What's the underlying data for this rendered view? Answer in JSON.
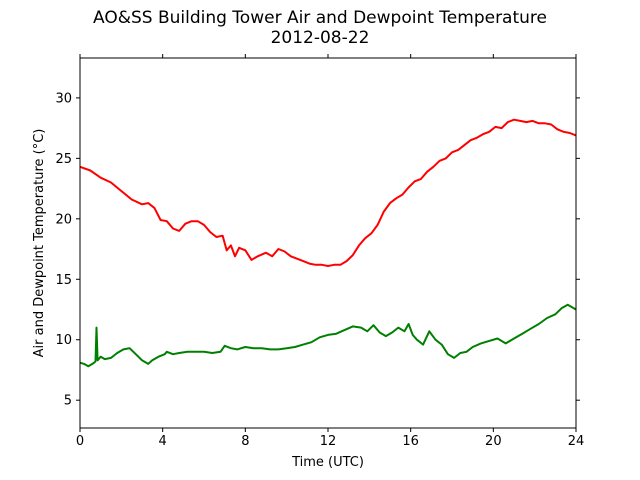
{
  "chart_data": {
    "type": "line",
    "title": "AO&SS Building Tower Air and Dewpoint Temperature",
    "subtitle": "2012-08-22",
    "xlabel": "Time (UTC)",
    "ylabel": "Air and Dewpoint Temperature (°C)",
    "xlim": [
      0,
      24
    ],
    "ylim": [
      2.7,
      33.3
    ],
    "xticks": [
      0,
      4,
      8,
      12,
      16,
      20,
      24
    ],
    "yticks": [
      5,
      10,
      15,
      20,
      25,
      30
    ],
    "grid": false,
    "series": [
      {
        "color": "#ff0000",
        "x": [
          0,
          0.5,
          1,
          1.5,
          2,
          2.5,
          3,
          3.3,
          3.6,
          3.9,
          4.2,
          4.5,
          4.8,
          5.1,
          5.4,
          5.7,
          6,
          6.3,
          6.6,
          6.9,
          7.1,
          7.3,
          7.5,
          7.7,
          8,
          8.3,
          8.6,
          9,
          9.3,
          9.6,
          9.9,
          10.2,
          10.5,
          10.8,
          11.1,
          11.4,
          11.7,
          12,
          12.3,
          12.6,
          12.9,
          13.2,
          13.5,
          13.8,
          14.1,
          14.4,
          14.7,
          15,
          15.3,
          15.6,
          15.9,
          16.2,
          16.5,
          16.8,
          17.1,
          17.4,
          17.7,
          18,
          18.3,
          18.6,
          18.9,
          19.2,
          19.5,
          19.8,
          20.1,
          20.4,
          20.7,
          21,
          21.3,
          21.6,
          21.9,
          22.2,
          22.5,
          22.8,
          23.1,
          23.4,
          23.7,
          24
        ],
        "values": [
          24.3,
          24.0,
          23.4,
          23.0,
          22.3,
          21.6,
          21.2,
          21.3,
          20.9,
          19.9,
          19.8,
          19.2,
          19.0,
          19.6,
          19.8,
          19.8,
          19.5,
          18.9,
          18.5,
          18.6,
          17.4,
          17.8,
          16.9,
          17.6,
          17.4,
          16.6,
          16.9,
          17.2,
          16.9,
          17.5,
          17.3,
          16.9,
          16.7,
          16.5,
          16.3,
          16.2,
          16.2,
          16.1,
          16.2,
          16.2,
          16.5,
          17.0,
          17.8,
          18.4,
          18.8,
          19.5,
          20.6,
          21.3,
          21.7,
          22.0,
          22.6,
          23.1,
          23.3,
          23.9,
          24.3,
          24.8,
          25.0,
          25.5,
          25.7,
          26.1,
          26.5,
          26.7,
          27.0,
          27.2,
          27.6,
          27.5,
          28.0,
          28.2,
          28.1,
          28.0,
          28.1,
          27.9,
          27.9,
          27.8,
          27.4,
          27.2,
          27.1,
          26.9
        ]
      },
      {
        "color": "#008000",
        "x": [
          0,
          0.2,
          0.4,
          0.6,
          0.75,
          0.8,
          0.85,
          1.0,
          1.2,
          1.5,
          1.8,
          2.1,
          2.4,
          2.7,
          3.0,
          3.3,
          3.5,
          3.8,
          4.1,
          4.2,
          4.5,
          4.8,
          5.2,
          5.6,
          6.0,
          6.4,
          6.8,
          7.0,
          7.3,
          7.6,
          8.0,
          8.4,
          8.8,
          9.2,
          9.6,
          10.0,
          10.4,
          10.8,
          11.2,
          11.6,
          12.0,
          12.4,
          12.8,
          13.2,
          13.6,
          13.9,
          14.2,
          14.5,
          14.8,
          15.1,
          15.4,
          15.7,
          15.9,
          16.1,
          16.3,
          16.6,
          16.9,
          17.2,
          17.5,
          17.8,
          18.1,
          18.4,
          18.7,
          19.0,
          19.4,
          19.8,
          20.2,
          20.6,
          21.0,
          21.4,
          21.8,
          22.2,
          22.6,
          23.0,
          23.3,
          23.6,
          24.0
        ],
        "values": [
          8.1,
          8.0,
          7.8,
          8.0,
          8.2,
          11.0,
          8.3,
          8.6,
          8.4,
          8.5,
          8.9,
          9.2,
          9.3,
          8.8,
          8.3,
          8.0,
          8.3,
          8.6,
          8.8,
          9.0,
          8.8,
          8.9,
          9.0,
          9.0,
          9.0,
          8.9,
          9.0,
          9.5,
          9.3,
          9.2,
          9.4,
          9.3,
          9.3,
          9.2,
          9.2,
          9.3,
          9.4,
          9.6,
          9.8,
          10.2,
          10.4,
          10.5,
          10.8,
          11.1,
          11.0,
          10.7,
          11.2,
          10.6,
          10.3,
          10.6,
          11.0,
          10.7,
          11.3,
          10.4,
          10.0,
          9.6,
          10.7,
          10.0,
          9.6,
          8.8,
          8.5,
          8.9,
          9.0,
          9.4,
          9.7,
          9.9,
          10.1,
          9.7,
          10.1,
          10.5,
          10.9,
          11.3,
          11.8,
          12.1,
          12.6,
          12.9,
          12.5
        ]
      }
    ]
  }
}
